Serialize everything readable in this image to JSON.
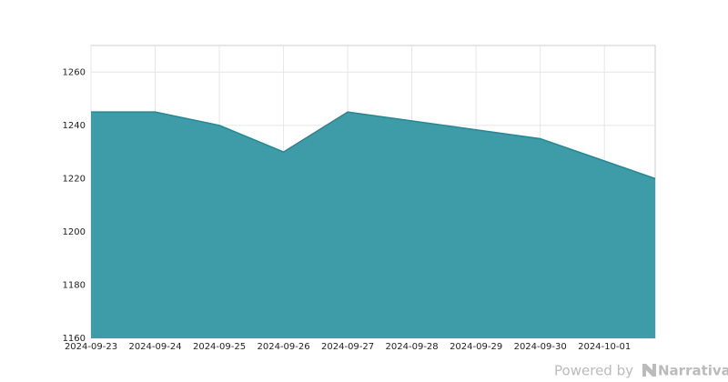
{
  "chart_data": {
    "type": "area",
    "x": [
      "2024-09-23",
      "2024-09-24",
      "2024-09-25",
      "2024-09-26",
      "2024-09-27",
      "2024-09-30",
      "2024-10-01T19:00"
    ],
    "series": [
      {
        "color": "#3a9aa6",
        "values": [
          1245,
          1245,
          1240,
          1230,
          1245,
          1235,
          1220
        ]
      }
    ],
    "xlim": [
      "2024-09-23",
      "2024-10-01T19:00"
    ],
    "xticks": [
      "2024-09-23",
      "2024-09-24",
      "2024-09-25",
      "2024-09-26",
      "2024-09-27",
      "2024-09-28",
      "2024-09-29",
      "2024-09-30",
      "2024-10-01"
    ],
    "ylim": [
      1160,
      1270
    ],
    "yticks": [
      1160,
      1180,
      1200,
      1220,
      1240,
      1260
    ],
    "grid": true
  },
  "footer": {
    "powered": "Powered by",
    "brand": "Narrativa"
  }
}
